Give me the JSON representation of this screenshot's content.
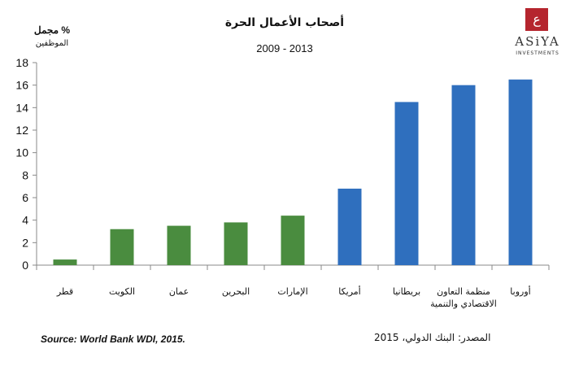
{
  "chart_data": {
    "type": "bar",
    "title": "أصحاب الأعمال الحرة",
    "subtitle": "2009 - 2013",
    "ylabel": "% مجمل",
    "ylabel_sub": "الموظفين",
    "ylim": [
      0,
      18
    ],
    "yticks": [
      "0",
      "2",
      "4",
      "6",
      "8",
      "10",
      "12",
      "14",
      "16",
      "18"
    ],
    "categories": [
      [
        "قطر"
      ],
      [
        "الكويت"
      ],
      [
        "عمان"
      ],
      [
        "البحرين"
      ],
      [
        "الإمارات"
      ],
      [
        "أمريكا"
      ],
      [
        "بريطانيا"
      ],
      [
        "منظمة التعاون",
        "الاقتصادي والتنمية"
      ],
      [
        "أوروبا"
      ]
    ],
    "values": [
      0.5,
      3.2,
      3.5,
      3.8,
      4.4,
      6.8,
      14.5,
      16.0,
      16.5
    ],
    "colors": [
      "#4a8c3f",
      "#4a8c3f",
      "#4a8c3f",
      "#4a8c3f",
      "#4a8c3f",
      "#2f6fbe",
      "#2f6fbe",
      "#2f6fbe",
      "#2f6fbe"
    ],
    "grid": false
  },
  "logo": {
    "name": "ASiYA",
    "sub": "INVESTMENTS",
    "mark_glyph": "ع"
  },
  "source": {
    "en": "Source: World Bank WDI, 2015.",
    "ar": "المصدر: البنك الدولي، 2015"
  }
}
